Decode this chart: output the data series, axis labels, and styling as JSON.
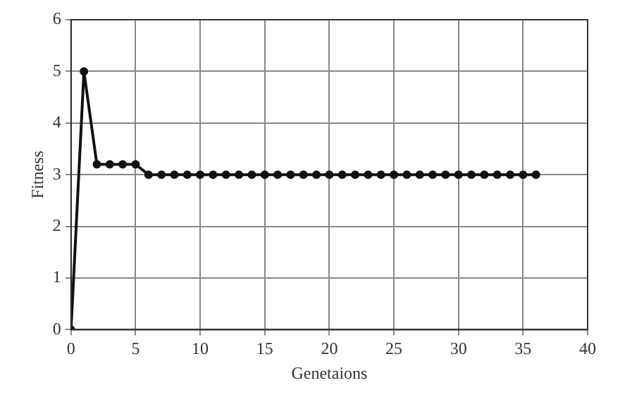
{
  "chart_data": {
    "type": "line",
    "xlabel": "Genetaions",
    "ylabel": "Fitness",
    "x": [
      0,
      1,
      2,
      3,
      4,
      5,
      6,
      7,
      8,
      9,
      10,
      11,
      12,
      13,
      14,
      15,
      16,
      17,
      18,
      19,
      20,
      21,
      22,
      23,
      24,
      25,
      26,
      27,
      28,
      29,
      30,
      31,
      32,
      33,
      34,
      35,
      36
    ],
    "series": [
      {
        "color": "#111111",
        "values": [
          0,
          5,
          3.2,
          3.2,
          3.2,
          3.2,
          3,
          3,
          3,
          3,
          3,
          3,
          3,
          3,
          3,
          3,
          3,
          3,
          3,
          3,
          3,
          3,
          3,
          3,
          3,
          3,
          3,
          3,
          3,
          3,
          3,
          3,
          3,
          3,
          3,
          3,
          3
        ]
      }
    ],
    "xlim": [
      0,
      40
    ],
    "xticks": [
      0,
      5,
      10,
      15,
      20,
      25,
      30,
      35,
      40
    ],
    "ylim": [
      0,
      6
    ],
    "yticks": [
      0,
      1,
      2,
      3,
      4,
      5,
      6
    ],
    "grid": true,
    "marker": "circle",
    "line_style": "solid"
  }
}
